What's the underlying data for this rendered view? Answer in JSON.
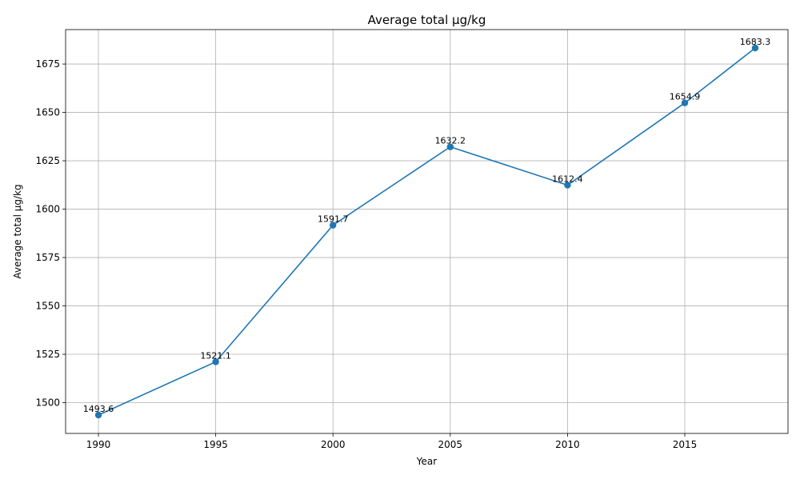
{
  "chart_data": {
    "type": "line",
    "title": "Average total µg/kg",
    "xlabel": "Year",
    "ylabel": "Average total µg/kg",
    "x": [
      1990,
      1995,
      2000,
      2005,
      2010,
      2015,
      2018
    ],
    "x_ticks": [
      1990,
      1995,
      2000,
      2005,
      2010,
      2015
    ],
    "y_ticks": [
      1500,
      1525,
      1550,
      1575,
      1600,
      1625,
      1650,
      1675
    ],
    "xlim": [
      1988.6,
      2019.4
    ],
    "ylim": [
      1484.1,
      1692.8
    ],
    "grid": true,
    "series": [
      {
        "values": [
          1493.6,
          1521.1,
          1591.7,
          1632.2,
          1612.4,
          1654.9,
          1683.3
        ],
        "labels": [
          "1493.6",
          "1521.1",
          "1591.7",
          "1632.2",
          "1612.4",
          "1654.9",
          "1683.3"
        ],
        "color": "#1f77b4",
        "marker": "circle"
      }
    ]
  }
}
